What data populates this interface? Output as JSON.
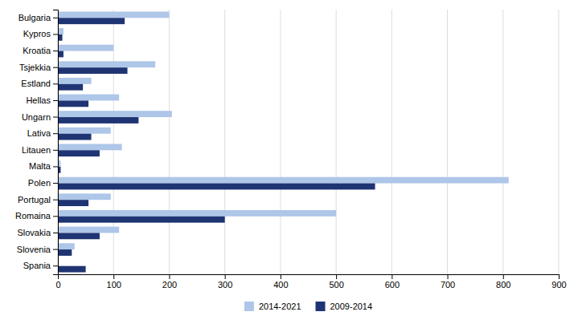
{
  "chart_data": {
    "type": "bar",
    "orientation": "horizontal",
    "categories": [
      "Spania",
      "Slovenia",
      "Slovakia",
      "Romaina",
      "Portugal",
      "Polen",
      "Malta",
      "Litauen",
      "Lativa",
      "Ungarn",
      "Hellas",
      "Estland",
      "Tsjekkia",
      "Kroatia",
      "Kypros",
      "Bulgaria"
    ],
    "series": [
      {
        "name": "2014-2021",
        "color": "#aec6e8",
        "values": [
          0,
          30,
          110,
          500,
          95,
          810,
          5,
          115,
          95,
          205,
          110,
          60,
          175,
          100,
          10,
          200
        ]
      },
      {
        "name": "2009-2014",
        "color": "#1f3473",
        "values": [
          50,
          25,
          75,
          300,
          55,
          570,
          5,
          75,
          60,
          145,
          55,
          45,
          125,
          10,
          8,
          120
        ]
      }
    ],
    "xlim": [
      0,
      900
    ],
    "xticks": [
      0,
      100,
      200,
      300,
      400,
      500,
      600,
      700,
      800,
      900
    ],
    "grid": true,
    "legend": "bottom"
  }
}
